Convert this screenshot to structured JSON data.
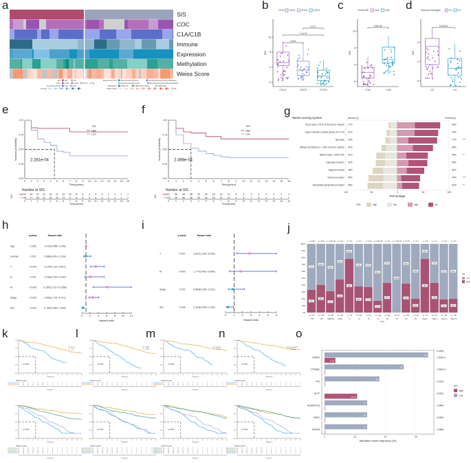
{
  "panels": {
    "a": {
      "label": "a",
      "rows": [
        "SIS",
        "COC",
        "C1A/C1B",
        "Immune",
        "Expression",
        "Methylation",
        "Weiss Score"
      ],
      "legend": {
        "SIS": [
          "high",
          "low"
        ],
        "COC": [
          "COC1",
          "COC2",
          "COC3",
          "NA"
        ],
        "Expression (K=2)": [
          "C1A",
          "C1B"
        ],
        "Immune": [
          "1",
          "2",
          "3",
          "4",
          "5",
          "6"
        ],
        "Expression (K=4)": [
          "Steroid-phenotype-low",
          "Steroid-phenotype-low+proliferation",
          "Steroid-phenotype-high",
          "Steroid-phenotype-high+proliferation"
        ],
        "Methylation": [
          "CIMP-low",
          "CIMP-intermediate",
          "CIMP-high"
        ],
        "Weiss Score": [
          "1",
          "2",
          "3",
          "4",
          "5",
          "6",
          "7",
          "8",
          "9",
          "NA"
        ]
      }
    },
    "b": {
      "label": "b",
      "legend_title": "COC",
      "groups": [
        "COC1",
        "COC2",
        "COC3"
      ],
      "ylabel": "SIS",
      "pvals": [
        "0.041",
        "7.1e-07",
        "0.017"
      ]
    },
    "c": {
      "label": "c",
      "legend_title": "C1A/C1B",
      "groups": [
        "C1A",
        "C1B"
      ],
      "ylabel": "SIS",
      "pvals": [
        "5.8e-09"
      ]
    },
    "d": {
      "label": "d",
      "legend_title": "Immune Subtype",
      "groups": [
        "C3",
        "C4"
      ],
      "ylabel": "SIS",
      "pvals": [
        "0.00015"
      ]
    },
    "e": {
      "label": "e",
      "pvalue": "2.281e-04",
      "legend_title": "SIS",
      "legend": [
        "High",
        "Low"
      ],
      "ylabel": "Survival probability",
      "xlabel": "Time(years)",
      "risk_title": "Number at SIS",
      "risk_ylabel": "SIS"
    },
    "f": {
      "label": "f",
      "pvalue": "2.498e-04",
      "legend_title": "SIS",
      "legend": [
        "High",
        "Low"
      ],
      "ylabel": "Survival probability",
      "xlabel": "Time(years)",
      "risk_title": "Number at SIS",
      "risk_ylabel": "SIS"
    },
    "g": {
      "label": "g",
      "title": "Weiss scoring system",
      "absent_label": "Absent (0)",
      "present_label": "Present(1)",
      "xlabel": "Percentage",
      "legend_title": "SIS",
      "legend": [
        "high",
        "low",
        "high",
        "low"
      ]
    },
    "h": {
      "label": "h",
      "col_pvalue": "pvalue",
      "col_hr": "Hazard ratio",
      "xlabel": "Hazard ratio"
    },
    "i": {
      "label": "i",
      "col_pvalue": "pvalue",
      "col_hr": "Hazard ratio",
      "xlabel": "Hazard ratio"
    },
    "j": {
      "label": "j",
      "xlabel": "Type",
      "legend_title": "SIS",
      "legend": [
        "Low",
        "High"
      ]
    },
    "k": {
      "label": "k",
      "pvalue": "p<0.001",
      "legend": [
        "H<=65",
        "L>65"
      ]
    },
    "l": {
      "label": "l",
      "pvalue": "p=0.016",
      "legend": [
        "H-SMT",
        "L-SMT"
      ]
    },
    "m": {
      "label": "m",
      "pvalue": "p<0.001",
      "legend": [
        "H-T3&4",
        "L-T1&2"
      ]
    },
    "n": {
      "label": "n",
      "pvalue": "p<0.001",
      "legend": [
        "H-stageIII&IV",
        "L-stageI&II"
      ]
    },
    "o": {
      "label": "o",
      "xlabel": "Alteration event frequency (%)",
      "pvalue_title": "p value",
      "legend_title": "SIS",
      "legend": [
        "High",
        "Low"
      ]
    }
  },
  "chart_data": [
    {
      "panel": "b",
      "type": "box",
      "title": "",
      "xlabel": "",
      "ylabel": "SIS",
      "categories": [
        "COC1",
        "COC2",
        "COC3"
      ],
      "series": [
        {
          "name": "COC1",
          "q1": 0.5,
          "median": 1.5,
          "q3": 5,
          "min": -4.5,
          "max": 8.5,
          "color": "#9b59b6"
        },
        {
          "name": "COC2",
          "q1": -2.8,
          "median": -1,
          "q3": 2,
          "min": -4.5,
          "max": 8,
          "color": "#7b86d8"
        },
        {
          "name": "COC3",
          "q1": -4.5,
          "median": -3,
          "q3": -1,
          "min": -6,
          "max": 2.5,
          "color": "#1a9cc4"
        }
      ],
      "ylim": [
        -6.5,
        16
      ],
      "yticks": [
        -5,
        0,
        5,
        10
      ],
      "comparisons": [
        {
          "a": "COC1",
          "b": "COC2",
          "p": "0.041"
        },
        {
          "a": "COC1",
          "b": "COC3",
          "p": "7.1e-07"
        },
        {
          "a": "COC2",
          "b": "COC3",
          "p": "0.017"
        }
      ]
    },
    {
      "panel": "c",
      "type": "box",
      "ylabel": "SIS",
      "categories": [
        "C1A",
        "C1B"
      ],
      "series": [
        {
          "name": "C1A",
          "q1": -4,
          "median": -2.3,
          "q3": -0.8,
          "min": -6.5,
          "max": 2.3,
          "color": "#9b59b6"
        },
        {
          "name": "C1B",
          "q1": 0.5,
          "median": 1.5,
          "q3": 5.2,
          "min": -3,
          "max": 8.5,
          "color": "#1a9cc4"
        }
      ],
      "ylim": [
        -6.5,
        13.5
      ],
      "yticks": [
        -5,
        0,
        5,
        10
      ],
      "comparisons": [
        {
          "a": "C1A",
          "b": "C1B",
          "p": "5.8e-09"
        }
      ]
    },
    {
      "panel": "d",
      "type": "box",
      "ylabel": "SIS",
      "categories": [
        "C3",
        "C4"
      ],
      "series": [
        {
          "name": "C3",
          "q1": -0.8,
          "median": 4,
          "q3": 6,
          "min": -4.5,
          "max": 8.5,
          "color": "#9b59b6"
        },
        {
          "name": "C4",
          "q1": -3.5,
          "median": -1.8,
          "q3": 0.8,
          "min": -6.5,
          "max": 4.5,
          "color": "#1a9cc4"
        }
      ],
      "ylim": [
        -6.5,
        11
      ],
      "yticks": [
        -5,
        0,
        5
      ],
      "comparisons": [
        {
          "a": "C3",
          "b": "C4",
          "p": "0.00015"
        }
      ]
    },
    {
      "panel": "e",
      "type": "line",
      "title": "",
      "xlabel": "Time(years)",
      "ylabel": "Survival probability",
      "x": [
        0,
        1,
        2,
        3,
        4,
        5,
        6,
        7,
        8,
        9,
        10,
        11,
        12,
        13,
        14,
        15,
        16
      ],
      "xlim": [
        0,
        16
      ],
      "ylim": [
        0,
        1
      ],
      "yticks": [
        "0.00",
        "0.25",
        "0.50",
        "0.75",
        "1.00"
      ],
      "series": [
        {
          "name": "High",
          "color": "#b03a5b",
          "values": [
            1,
            0.87,
            0.86,
            0.86,
            0.86,
            0.86,
            0.86,
            0.8,
            0.8,
            0.8,
            0.8,
            0.8,
            0.8,
            0.8,
            0.8,
            0.8,
            0.8
          ]
        },
        {
          "name": "Low",
          "color": "#8fa0c4",
          "values": [
            1,
            0.83,
            0.68,
            0.62,
            0.57,
            0.47,
            0.45,
            0.39,
            0.39,
            0.39,
            0.39,
            0.39,
            0.39,
            0.39,
            0.39,
            0.39,
            0.39
          ]
        }
      ],
      "median_time": 4.6,
      "pvalue": "2.281e-04",
      "risk_table": {
        "times": [
          0,
          1,
          2,
          3,
          4,
          5,
          6,
          7,
          8,
          9,
          10,
          11,
          12,
          13,
          14,
          15,
          16
        ],
        "High": [
          52,
          48,
          37,
          31,
          26,
          21,
          16,
          13,
          10,
          8,
          4,
          3,
          3,
          2,
          2,
          1,
          1
        ],
        "Low": [
          96,
          77,
          56,
          41,
          30,
          20,
          11,
          9,
          8,
          6,
          5,
          4,
          3,
          1,
          1,
          1,
          1
        ]
      }
    },
    {
      "panel": "f",
      "type": "line",
      "xlabel": "Time(years)",
      "ylabel": "Survival probability",
      "x": [
        0,
        1,
        2,
        3,
        4,
        5,
        6,
        7,
        8,
        9,
        10,
        11,
        12,
        13,
        14,
        15,
        16
      ],
      "xlim": [
        0,
        16
      ],
      "ylim": [
        0,
        1
      ],
      "yticks": [
        "0.00",
        "0.25",
        "0.50",
        "0.75",
        "1.00"
      ],
      "series": [
        {
          "name": "High",
          "color": "#b03a5b",
          "values": [
            1,
            0.86,
            0.8,
            0.78,
            0.78,
            0.72,
            0.72,
            0.68,
            0.68,
            0.68,
            0.68,
            0.68,
            0.68,
            0.68,
            0.68,
            0.68,
            0.68
          ]
        },
        {
          "name": "Low",
          "color": "#8fa0c4",
          "values": [
            1,
            0.75,
            0.6,
            0.52,
            0.47,
            0.43,
            0.4,
            0.37,
            0.36,
            0.36,
            0.36,
            0.36,
            0.36,
            0.36,
            0.36,
            0.36,
            0.36
          ]
        }
      ],
      "median_time": 3,
      "pvalue": "2.498e-04",
      "risk_table": {
        "times": [
          0,
          1,
          2,
          3,
          4,
          5,
          6,
          7,
          8,
          9,
          10,
          11,
          12,
          13,
          14,
          15,
          16
        ],
        "High": [
          67,
          58,
          48,
          38,
          33,
          26,
          18,
          15,
          11,
          8,
          4,
          3,
          3,
          2,
          2,
          1,
          1
        ],
        "Low": [
          122,
          95,
          66,
          46,
          35,
          25,
          16,
          13,
          12,
          9,
          8,
          7,
          6,
          2,
          2,
          2,
          1
        ]
      }
    },
    {
      "panel": "g",
      "type": "bar",
      "orientation": "horizontal-diverging",
      "categories": [
        "Clear cells ≤ 25% of the tumor volume",
        "High Fuhrman nuclear grade (III or IV)",
        "Necrosis",
        "Diffuse architecture > 33% of tumor volume",
        "Mitotic Rate > 5/50 HPF",
        "Capsular invasion",
        "Atypical mitosis",
        "Venous invasion",
        "Sinusoidal (lymphatic) invasion"
      ],
      "absent_pct": [
        "17%",
        "21%",
        "23%",
        "31%",
        "41%",
        "42%",
        "48%",
        "56%",
        "58%"
      ],
      "present_pct": [
        "83%",
        "79%",
        "77%",
        "69%",
        "59%",
        "58%",
        "52%",
        "44%",
        "42%"
      ],
      "significance": [
        "",
        "",
        "***",
        "",
        "**",
        "",
        "",
        "***",
        "**"
      ],
      "series": [
        {
          "name": "Absent high",
          "color": "#ddd5c1",
          "values": [
            4,
            5,
            8,
            9,
            17,
            18,
            20,
            29,
            30
          ]
        },
        {
          "name": "Absent low",
          "color": "#e8e6df",
          "values": [
            13,
            16,
            15,
            22,
            24,
            24,
            28,
            27,
            28
          ]
        },
        {
          "name": "Present high",
          "color": "#d49ab0",
          "values": [
            34,
            33,
            21,
            30,
            17,
            21,
            18,
            7,
            9
          ]
        },
        {
          "name": "Present low",
          "color": "#b05478",
          "values": [
            49,
            46,
            56,
            39,
            42,
            37,
            34,
            37,
            33
          ]
        }
      ],
      "xlabel": "Percentage",
      "xlim": [
        -100,
        100
      ],
      "xticks": [
        100,
        50,
        0,
        50,
        100
      ]
    },
    {
      "panel": "h",
      "type": "forest",
      "categories": [
        "Age",
        "Gender",
        "T",
        "N",
        "M",
        "Stage",
        "SIS"
      ],
      "pvalues": [
        "0.328",
        "0.972",
        "<0.001",
        "0.152",
        "<0.001",
        "<0.001",
        "0.003"
      ],
      "hr_text": [
        "1.012(0.988−1.036)",
        "0.986(0.451−2.154)",
        "3.376(2.110−5.407)",
        "2.036(0.769−5.400)",
        "6.150(2.710−13.958)",
        "2.658(1.714−4.121)",
        "0.190(0.066−0.546)"
      ],
      "hr": [
        1.012,
        0.986,
        3.376,
        2.036,
        6.15,
        2.658,
        0.19
      ],
      "lower": [
        0.988,
        0.451,
        2.11,
        0.769,
        2.71,
        1.714,
        0.066
      ],
      "upper": [
        1.036,
        2.154,
        5.407,
        5.4,
        13.958,
        4.121,
        0.546
      ],
      "xlim": [
        0,
        12
      ],
      "xticks": [
        0,
        2,
        4,
        6,
        8,
        10,
        12
      ],
      "xlabel": "Hazard ratio"
    },
    {
      "panel": "i",
      "type": "forest",
      "categories": [
        "T",
        "M",
        "Stage",
        "SIS"
      ],
      "pvalues": [
        "0.007",
        "0.403",
        "0.761",
        "0.038"
      ],
      "hr_text": [
        "2.837(1.330−6.030)",
        "1.777(0.462−6.840)",
        "0.864(0.336−2.221)",
        "0.303(0.098−0.939)"
      ],
      "hr": [
        2.837,
        1.777,
        0.864,
        0.303
      ],
      "lower": [
        1.33,
        0.462,
        0.336,
        0.098
      ],
      "upper": [
        6.03,
        6.84,
        2.221,
        0.939
      ],
      "xlim": [
        0,
        6
      ],
      "xticks": [
        0,
        1,
        2,
        3,
        4,
        5,
        6
      ],
      "xlabel": "Hazard ratio"
    },
    {
      "panel": "j",
      "type": "bar",
      "stacked": true,
      "categories": [
        "<=65",
        ">65",
        "FEMALE",
        "MALE",
        "T1",
        "T2",
        "T3",
        "T4",
        "N0",
        "N1",
        "M0",
        "M1",
        "Stage I",
        "Stage II",
        "Stage III",
        "Stage IV"
      ],
      "n_labels": [
        "(n = 57)",
        "(n = 50)",
        "(n = 48)",
        "(n = 29)",
        "(n = 9)",
        "(n = 42)",
        "(n = 8)",
        "(n = 18)",
        "(n = 69)",
        "(n = 8)",
        "(n = 62)",
        "(n = 15)",
        "(n = 9)",
        "(n = 37)",
        "(n = 16)",
        "(n = 15)"
      ],
      "top_pvalues": [
        "p = 0.06",
        "p = 0.06",
        "p = 4.20e-05",
        "p = 0.06",
        "p = 0.6",
        "p = 0.3",
        "p = 0.06",
        "p = 4.69e-05",
        "p = 0.6",
        "p = 2.70e-05",
        "p = 0.06",
        "p = 0.3",
        "p = 0.6",
        "p = 0.1",
        "p = 0.5",
        "p = 0.5"
      ],
      "series": [
        {
          "name": "High",
          "color": "#a85373",
          "values": [
            33,
            40,
            31,
            48,
            78,
            38,
            37,
            17,
            43,
            0,
            42,
            20,
            78,
            43,
            19,
            20
          ]
        },
        {
          "name": "Low",
          "color": "#a0aabe",
          "values": [
            67,
            60,
            69,
            52,
            22,
            62,
            63,
            83,
            57,
            100,
            58,
            80,
            22,
            57,
            81,
            80
          ]
        }
      ],
      "ylim": [
        0,
        100
      ],
      "yticks": [
        "0%",
        "10%",
        "20%",
        "30%",
        "40%",
        "50%",
        "60%",
        "70%",
        "80%",
        "90%",
        "100%"
      ],
      "xlabel": "Type"
    },
    {
      "panel": "o",
      "type": "bar",
      "orientation": "horizontal",
      "categories": [
        "ZNRF3",
        "CTNNB1",
        "TTN",
        "HLTF",
        "ADAMTS16",
        "NSD1",
        "PKRP8"
      ],
      "series": [
        {
          "name": "Low",
          "color": "#a0aabe",
          "values": [
            34,
            26,
            18,
            0,
            14,
            14,
            14
          ]
        },
        {
          "name": "High",
          "color": "#b05478",
          "values": [
            3.57,
            0,
            0,
            10.71,
            0,
            0,
            0
          ]
        }
      ],
      "value_labels_low": [
        "34",
        "26",
        "18",
        "",
        "14",
        "14",
        "14"
      ],
      "value_labels_high": [
        "3.57",
        "",
        "",
        "10.71",
        "",
        "",
        ""
      ],
      "pvalues": [
        "1.603e-3",
        "2.902e-3",
        "0.0226",
        "0.0431",
        "0.0484",
        "0.0454",
        "0.0486"
      ],
      "xlim": [
        0,
        35
      ],
      "xticks": [
        0,
        10,
        20,
        30
      ],
      "xlabel": "Alteration event frequency (%)"
    }
  ]
}
